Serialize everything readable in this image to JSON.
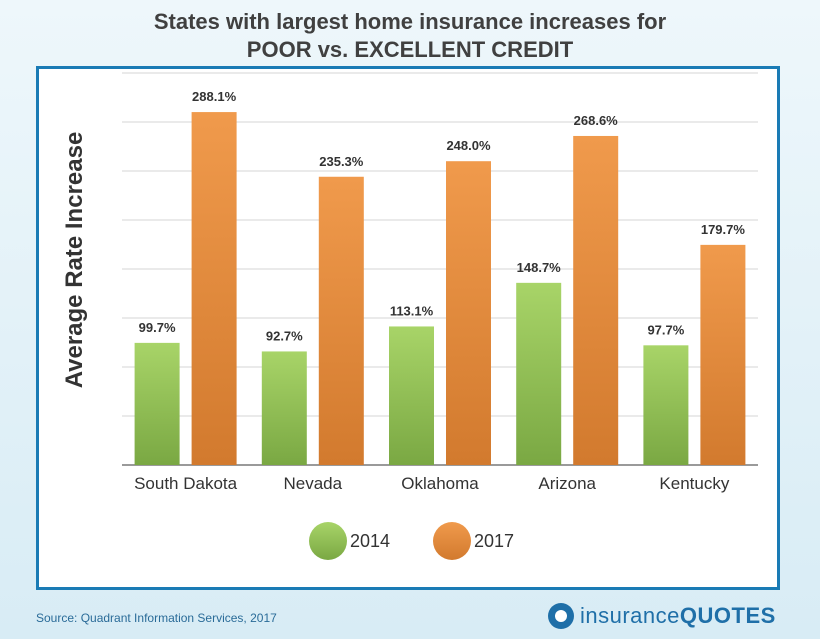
{
  "title_line1": "States with largest home insurance increases for",
  "title_line2": "POOR vs. EXCELLENT CREDIT",
  "source": "Source:  Quadrant Information Services, 2017",
  "logo": {
    "part1": "insurance",
    "part2": "QUOTES"
  },
  "chart_data": {
    "type": "bar",
    "ylabel": "Average Rate Increase",
    "ylim": [
      0,
      320
    ],
    "grid": true,
    "legend_position": "bottom",
    "categories": [
      "South Dakota",
      "Nevada",
      "Oklahoma",
      "Arizona",
      "Kentucky"
    ],
    "series": [
      {
        "name": "2014",
        "color": "#8cbf4a",
        "values": [
          99.7,
          92.7,
          113.1,
          148.7,
          97.7
        ],
        "labels": [
          "99.7%",
          "92.7%",
          "113.1%",
          "148.7%",
          "97.7%"
        ]
      },
      {
        "name": "2017",
        "color": "#e88a3a",
        "values": [
          288.1,
          235.3,
          248.0,
          268.6,
          179.7
        ],
        "labels": [
          "288.1%",
          "235.3%",
          "248.0%",
          "268.6%",
          "179.7%"
        ]
      }
    ]
  }
}
